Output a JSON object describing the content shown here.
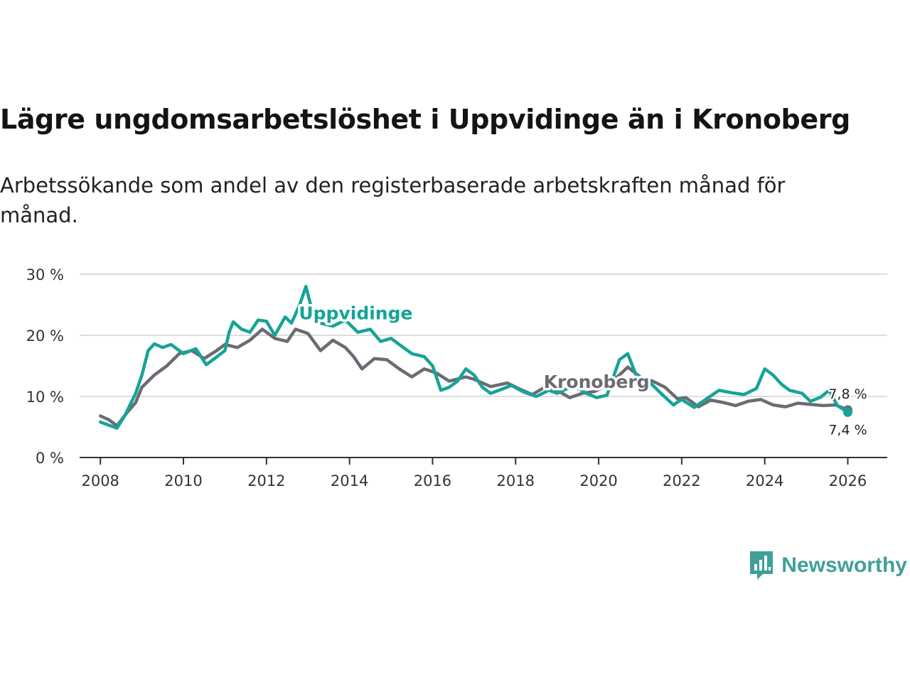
{
  "title": "Lägre ungdomsarbetslöshet i Uppvidinge än i Kronoberg",
  "subtitle": "Arbetssökande som andel av den registerbaserade arbetskraften månad för månad.",
  "brand": {
    "name": "Newsworthy"
  },
  "colors": {
    "uppvidinge": "#17a397",
    "kronoberg": "#6c6b73",
    "grid": "#dddddd",
    "axis": "#333333"
  },
  "chart_data": {
    "type": "line",
    "title": "Lägre ungdomsarbetslöshet i Uppvidinge än i Kronoberg",
    "xlabel": "",
    "ylabel": "",
    "xlim": [
      2007.5,
      2026.95
    ],
    "ylim": [
      0,
      30
    ],
    "x_ticks": [
      2008,
      2010,
      2012,
      2014,
      2016,
      2018,
      2020,
      2022,
      2024,
      2026
    ],
    "y_ticks": [
      0,
      10,
      20,
      30
    ],
    "y_tick_labels": [
      "0 %",
      "10 %",
      "20 %",
      "30 %"
    ],
    "grid": true,
    "series": [
      {
        "name": "Kronoberg",
        "end_label": "7,8 %",
        "points": [
          [
            2008.0,
            6.8
          ],
          [
            2008.2,
            6.2
          ],
          [
            2008.4,
            5.2
          ],
          [
            2008.6,
            7.0
          ],
          [
            2008.85,
            9.0
          ],
          [
            2009.0,
            11.5
          ],
          [
            2009.3,
            13.5
          ],
          [
            2009.6,
            15.0
          ],
          [
            2009.9,
            17.0
          ],
          [
            2010.2,
            17.5
          ],
          [
            2010.5,
            16.2
          ],
          [
            2010.8,
            17.5
          ],
          [
            2011.0,
            18.5
          ],
          [
            2011.3,
            18.0
          ],
          [
            2011.6,
            19.2
          ],
          [
            2011.9,
            21.0
          ],
          [
            2012.2,
            19.5
          ],
          [
            2012.5,
            19.0
          ],
          [
            2012.7,
            21.0
          ],
          [
            2013.0,
            20.3
          ],
          [
            2013.3,
            17.5
          ],
          [
            2013.6,
            19.2
          ],
          [
            2013.9,
            18.0
          ],
          [
            2014.1,
            16.5
          ],
          [
            2014.3,
            14.5
          ],
          [
            2014.6,
            16.2
          ],
          [
            2014.9,
            16.0
          ],
          [
            2015.2,
            14.5
          ],
          [
            2015.5,
            13.2
          ],
          [
            2015.8,
            14.5
          ],
          [
            2016.1,
            13.8
          ],
          [
            2016.4,
            12.5
          ],
          [
            2016.8,
            13.2
          ],
          [
            2017.0,
            12.8
          ],
          [
            2017.4,
            11.6
          ],
          [
            2017.8,
            12.2
          ],
          [
            2018.1,
            11.2
          ],
          [
            2018.4,
            10.3
          ],
          [
            2018.7,
            11.5
          ],
          [
            2019.0,
            11.0
          ],
          [
            2019.3,
            9.8
          ],
          [
            2019.6,
            10.5
          ],
          [
            2019.9,
            10.8
          ],
          [
            2020.2,
            11.8
          ],
          [
            2020.5,
            13.5
          ],
          [
            2020.7,
            14.8
          ],
          [
            2021.0,
            13.2
          ],
          [
            2021.3,
            12.5
          ],
          [
            2021.6,
            11.5
          ],
          [
            2021.9,
            9.6
          ],
          [
            2022.1,
            9.8
          ],
          [
            2022.4,
            8.3
          ],
          [
            2022.7,
            9.4
          ],
          [
            2023.0,
            9.0
          ],
          [
            2023.3,
            8.5
          ],
          [
            2023.6,
            9.2
          ],
          [
            2023.9,
            9.5
          ],
          [
            2024.2,
            8.6
          ],
          [
            2024.5,
            8.3
          ],
          [
            2024.8,
            8.9
          ],
          [
            2025.1,
            8.7
          ],
          [
            2025.4,
            8.5
          ],
          [
            2025.7,
            8.6
          ],
          [
            2026.0,
            7.8
          ]
        ]
      },
      {
        "name": "Uppvidinge",
        "end_label": "7,4 %",
        "points": [
          [
            2008.0,
            5.8
          ],
          [
            2008.2,
            5.3
          ],
          [
            2008.4,
            4.8
          ],
          [
            2008.6,
            7.0
          ],
          [
            2008.85,
            10.5
          ],
          [
            2009.0,
            13.5
          ],
          [
            2009.15,
            17.5
          ],
          [
            2009.3,
            18.6
          ],
          [
            2009.5,
            18.0
          ],
          [
            2009.7,
            18.5
          ],
          [
            2010.0,
            17.0
          ],
          [
            2010.3,
            17.8
          ],
          [
            2010.55,
            15.2
          ],
          [
            2010.75,
            16.2
          ],
          [
            2011.0,
            17.5
          ],
          [
            2011.1,
            20.5
          ],
          [
            2011.2,
            22.2
          ],
          [
            2011.4,
            21.0
          ],
          [
            2011.6,
            20.5
          ],
          [
            2011.8,
            22.5
          ],
          [
            2012.0,
            22.3
          ],
          [
            2012.2,
            20.0
          ],
          [
            2012.45,
            23.0
          ],
          [
            2012.6,
            22.0
          ],
          [
            2012.8,
            25.0
          ],
          [
            2012.95,
            28.0
          ],
          [
            2013.1,
            24.0
          ],
          [
            2013.3,
            22.0
          ],
          [
            2013.6,
            21.5
          ],
          [
            2013.9,
            22.5
          ],
          [
            2014.2,
            20.5
          ],
          [
            2014.5,
            21.0
          ],
          [
            2014.75,
            19.0
          ],
          [
            2015.0,
            19.5
          ],
          [
            2015.2,
            18.5
          ],
          [
            2015.5,
            17.0
          ],
          [
            2015.8,
            16.5
          ],
          [
            2016.0,
            15.0
          ],
          [
            2016.2,
            11.0
          ],
          [
            2016.4,
            11.5
          ],
          [
            2016.6,
            12.5
          ],
          [
            2016.8,
            14.5
          ],
          [
            2017.0,
            13.5
          ],
          [
            2017.2,
            11.5
          ],
          [
            2017.4,
            10.5
          ],
          [
            2017.6,
            11.0
          ],
          [
            2017.9,
            11.8
          ],
          [
            2018.2,
            10.7
          ],
          [
            2018.5,
            10.0
          ],
          [
            2018.8,
            11.0
          ],
          [
            2019.0,
            10.5
          ],
          [
            2019.4,
            11.8
          ],
          [
            2019.7,
            10.5
          ],
          [
            2019.95,
            9.8
          ],
          [
            2020.2,
            10.2
          ],
          [
            2020.5,
            16.0
          ],
          [
            2020.7,
            17.0
          ],
          [
            2020.9,
            13.5
          ],
          [
            2021.2,
            12.5
          ],
          [
            2021.5,
            10.5
          ],
          [
            2021.8,
            8.6
          ],
          [
            2022.0,
            9.5
          ],
          [
            2022.3,
            8.2
          ],
          [
            2022.6,
            9.6
          ],
          [
            2022.9,
            11.0
          ],
          [
            2023.2,
            10.6
          ],
          [
            2023.5,
            10.3
          ],
          [
            2023.8,
            11.3
          ],
          [
            2024.0,
            14.5
          ],
          [
            2024.2,
            13.5
          ],
          [
            2024.4,
            12.0
          ],
          [
            2024.6,
            11.0
          ],
          [
            2024.9,
            10.5
          ],
          [
            2025.1,
            9.2
          ],
          [
            2025.35,
            9.9
          ],
          [
            2025.55,
            11.0
          ],
          [
            2025.75,
            8.5
          ],
          [
            2026.0,
            7.4
          ]
        ]
      }
    ]
  }
}
